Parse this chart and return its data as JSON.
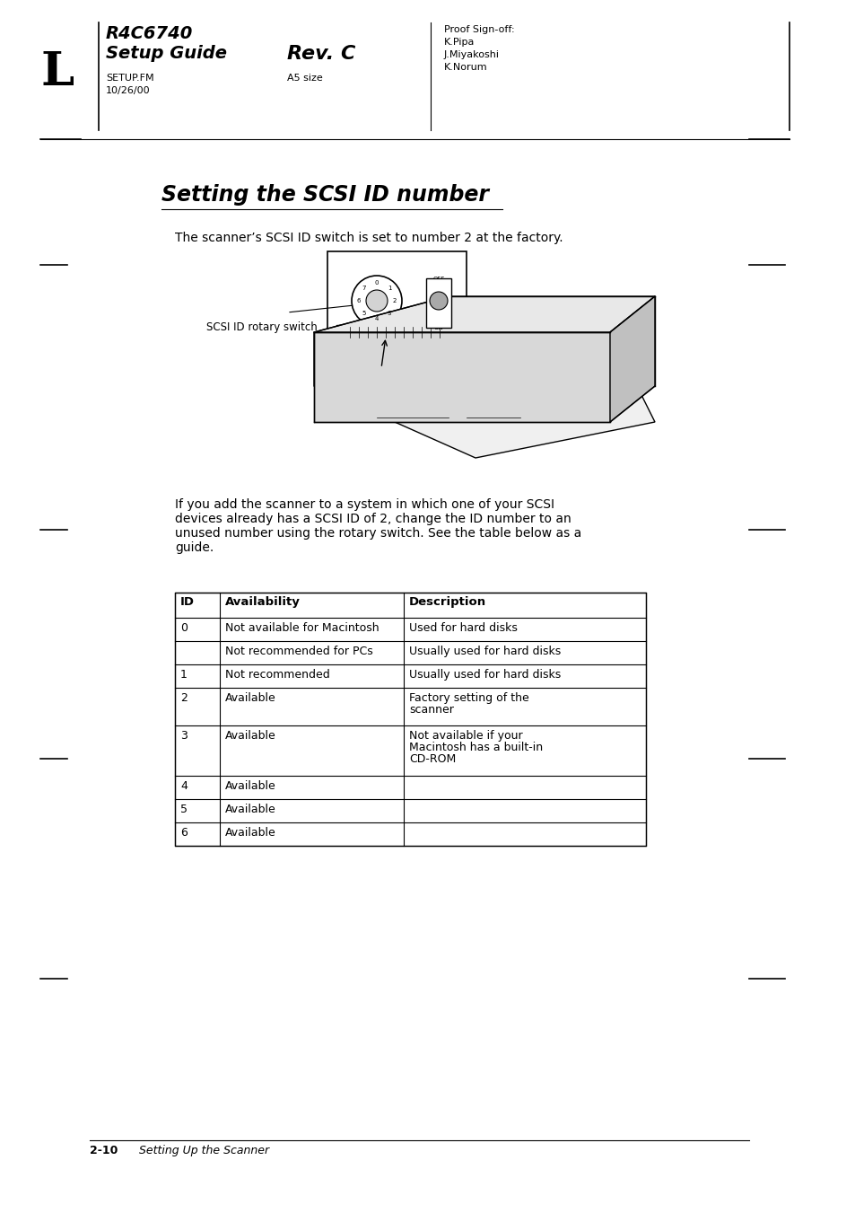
{
  "page_bg": "#ffffff",
  "header": {
    "letter": "L",
    "title_line1": "R4C6740",
    "title_line2": "Setup Guide",
    "rev_label": "Rev. C",
    "sub1": "SETUP.FM",
    "sub2": "10/26/00",
    "rev_sub": "A5 size",
    "proof": "Proof Sign-off:",
    "names": [
      "K.Pipa",
      "J.Miyakoshi",
      "K.Norum"
    ]
  },
  "section_title": "Setting the SCSI ID number",
  "intro_text": "The scanner’s SCSI ID switch is set to number 2 at the factory.",
  "label_switch": "SCSI ID rotary switch",
  "body_text": "If you add the scanner to a system in which one of your SCSI\ndevices already has a SCSI ID of 2, change the ID number to an\nunused number using the rotary switch. See the table below as a\nguide.",
  "table_headers": [
    "ID",
    "Availability",
    "Description"
  ],
  "table_rows": [
    [
      "0",
      "Not available for Macintosh",
      "Used for hard disks"
    ],
    [
      "",
      "Not recommended for PCs",
      "Usually used for hard disks"
    ],
    [
      "1",
      "Not recommended",
      "Usually used for hard disks"
    ],
    [
      "2",
      "Available",
      "Factory setting of the\nscanner"
    ],
    [
      "3",
      "Available",
      "Not available if your\nMacintosh has a built-in\nCD-ROM"
    ],
    [
      "4",
      "Available",
      ""
    ],
    [
      "5",
      "Available",
      ""
    ],
    [
      "6",
      "Available",
      ""
    ]
  ],
  "footer_page": "2-10",
  "footer_text": "Setting Up the Scanner"
}
